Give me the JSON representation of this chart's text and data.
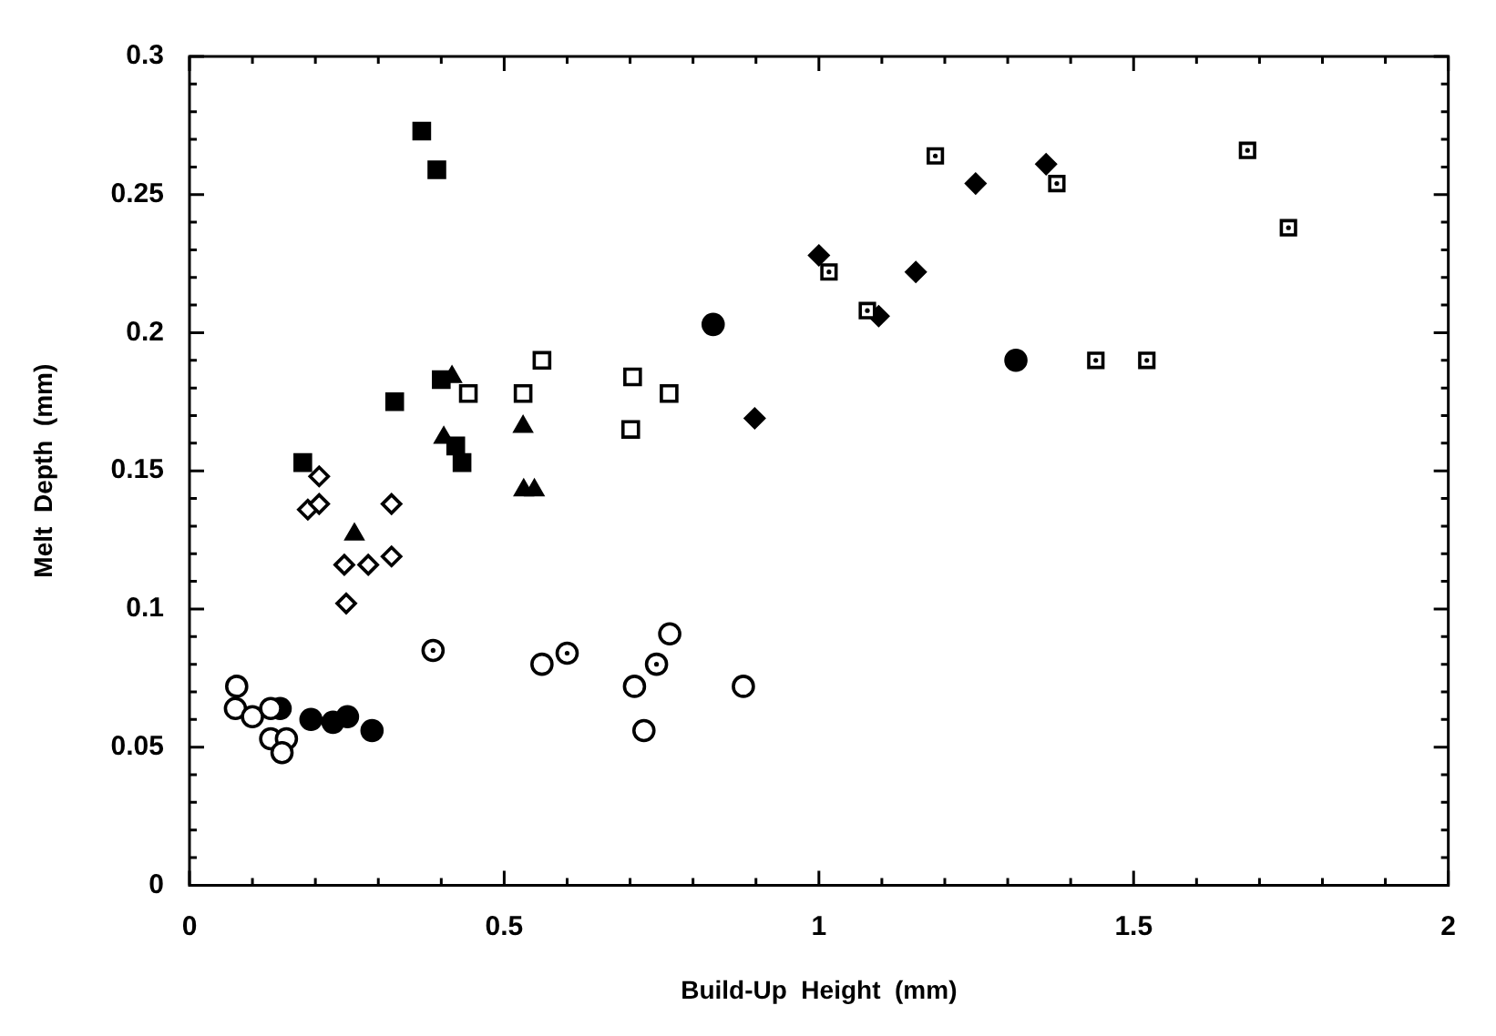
{
  "chart_data": {
    "type": "scatter",
    "xlabel": "Build-Up  Height  (mm)",
    "ylabel": "Melt  Depth  (mm)",
    "xlim": [
      0,
      2
    ],
    "ylim": [
      0,
      0.3
    ],
    "xticks": [
      0,
      {
        "value": 0.1,
        "label": null
      },
      {
        "value": 0.2,
        "label": null
      },
      {
        "value": 0.3,
        "label": null
      },
      {
        "value": 0.4,
        "label": null
      },
      0.5,
      {
        "value": 0.6,
        "label": null
      },
      {
        "value": 0.7,
        "label": null
      },
      {
        "value": 0.8,
        "label": null
      },
      {
        "value": 0.9,
        "label": null
      },
      1,
      {
        "value": 1.1,
        "label": null
      },
      {
        "value": 1.2,
        "label": null
      },
      {
        "value": 1.3,
        "label": null
      },
      {
        "value": 1.4,
        "label": null
      },
      1.5,
      {
        "value": 1.6,
        "label": null
      },
      {
        "value": 1.7,
        "label": null
      },
      {
        "value": 1.8,
        "label": null
      },
      {
        "value": 1.9,
        "label": null
      },
      2
    ],
    "yticks": [
      0,
      {
        "value": 0.01,
        "label": null
      },
      {
        "value": 0.02,
        "label": null
      },
      {
        "value": 0.03,
        "label": null
      },
      {
        "value": 0.04,
        "label": null
      },
      0.05,
      {
        "value": 0.06,
        "label": null
      },
      {
        "value": 0.07,
        "label": null
      },
      {
        "value": 0.08,
        "label": null
      },
      {
        "value": 0.09,
        "label": null
      },
      0.1,
      {
        "value": 0.11,
        "label": null
      },
      {
        "value": 0.12,
        "label": null
      },
      {
        "value": 0.13,
        "label": null
      },
      {
        "value": 0.14,
        "label": null
      },
      0.15,
      {
        "value": 0.16,
        "label": null
      },
      {
        "value": 0.17,
        "label": null
      },
      {
        "value": 0.18,
        "label": null
      },
      {
        "value": 0.19,
        "label": null
      },
      0.2,
      {
        "value": 0.21,
        "label": null
      },
      {
        "value": 0.22,
        "label": null
      },
      {
        "value": 0.23,
        "label": null
      },
      {
        "value": 0.24,
        "label": null
      },
      0.25,
      {
        "value": 0.26,
        "label": null
      },
      {
        "value": 0.27,
        "label": null
      },
      {
        "value": 0.28,
        "label": null
      },
      {
        "value": 0.29,
        "label": null
      },
      0.3
    ],
    "grid": false,
    "legend": false,
    "series": [
      {
        "color": "#000000",
        "marker": "square",
        "x": [
          0.369,
          0.393,
          0.4,
          0.326,
          0.423,
          0.433,
          0.18
        ],
        "values": [
          0.273,
          0.259,
          0.183,
          0.175,
          0.159,
          0.153,
          0.153
        ]
      },
      {
        "color": "#000000",
        "marker": "triangle",
        "x": [
          0.417,
          0.404,
          0.53,
          0.531,
          0.548,
          0.262
        ],
        "values": [
          0.184,
          0.162,
          0.166,
          0.143,
          0.143,
          0.127
        ]
      },
      {
        "color": "#000000",
        "marker": "square-open",
        "x": [
          0.443,
          0.53,
          0.56,
          0.704,
          0.762,
          0.701
        ],
        "values": [
          0.178,
          0.178,
          0.19,
          0.184,
          0.178,
          0.165
        ]
      },
      {
        "color": "#000000",
        "marker": "square-dot",
        "x": [
          1.185,
          1.378,
          1.681,
          1.746,
          1.016,
          1.077,
          1.44,
          1.521
        ],
        "values": [
          0.264,
          0.254,
          0.266,
          0.238,
          0.222,
          0.208,
          0.19,
          0.19
        ]
      },
      {
        "color": "#000000",
        "marker": "diamond",
        "x": [
          1.361,
          1.249,
          1.0,
          1.154,
          1.095,
          0.898
        ],
        "values": [
          0.261,
          0.254,
          0.228,
          0.222,
          0.206,
          0.169
        ]
      },
      {
        "color": "#000000",
        "marker": "diamond-open",
        "x": [
          0.206,
          0.188,
          0.206,
          0.321,
          0.246,
          0.284,
          0.321,
          0.249
        ],
        "values": [
          0.148,
          0.136,
          0.138,
          0.138,
          0.116,
          0.116,
          0.119,
          0.102
        ]
      },
      {
        "color": "#000000",
        "marker": "circle-dot",
        "x": [
          0.387,
          0.6,
          0.742
        ],
        "values": [
          0.085,
          0.084,
          0.08
        ]
      },
      {
        "color": "#000000",
        "marker": "circle-open",
        "x": [
          0.075,
          0.073,
          0.1,
          0.129,
          0.129,
          0.154,
          0.147,
          0.56,
          0.707,
          0.722,
          0.88,
          0.763
        ],
        "values": [
          0.072,
          0.064,
          0.061,
          0.064,
          0.053,
          0.053,
          0.048,
          0.08,
          0.072,
          0.056,
          0.072,
          0.091
        ]
      },
      {
        "color": "#000000",
        "marker": "circle",
        "x": [
          0.144,
          0.193,
          0.228,
          0.251,
          0.29,
          0.832,
          1.313
        ],
        "values": [
          0.064,
          0.06,
          0.059,
          0.061,
          0.056,
          0.203,
          0.19
        ]
      }
    ]
  }
}
